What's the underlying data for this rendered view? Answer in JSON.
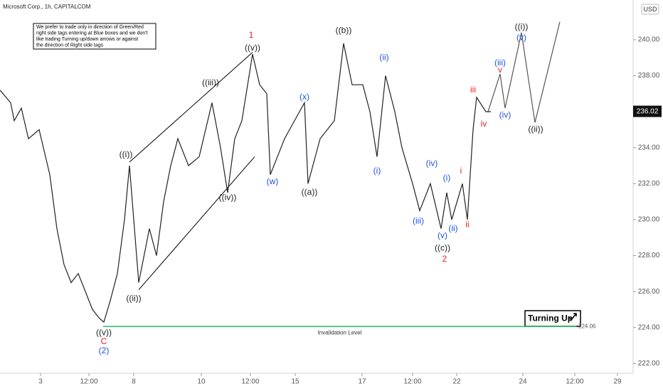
{
  "chart_data": {
    "type": "line",
    "title": "Microsoft Corp., 1h, CAPITALCOM",
    "currency": "USD",
    "note": [
      "We prefer to trade only in direction of Green/Red",
      "right side tags entering at Blue boxes and we don't",
      "like trading Turning up/down arrows or against",
      "the direction of Right side tags"
    ],
    "color": "#222222",
    "x": [
      0.0,
      1.5,
      2.0,
      3.0,
      4.0,
      5.5,
      7.0,
      8.0,
      9.0,
      10.0,
      11.0,
      12.0,
      13.0,
      14.0,
      14.6,
      15.5,
      16.5,
      17.5,
      18.2,
      19.5,
      21.0,
      22.0,
      23.0,
      24.0,
      25.0,
      26.5,
      28.0,
      29.8,
      31.0,
      32.0,
      33.0,
      34.0,
      35.5,
      36.5,
      37.5,
      38.0,
      40.0,
      42.8,
      43.3,
      45.0,
      47.0,
      48.3,
      49.5,
      51.0,
      52.0,
      53.0,
      54.2,
      55.5,
      56.5,
      58.0,
      59.0,
      60.5,
      62.0,
      62.8,
      63.5,
      65.0,
      65.7,
      66.5,
      67.0,
      68.3,
      69.0
    ],
    "values": [
      237.2,
      236.5,
      235.5,
      236.2,
      234.5,
      235.0,
      232.5,
      229.5,
      227.5,
      226.5,
      227.0,
      226.0,
      225.0,
      224.5,
      224.3,
      225.5,
      227.0,
      230.0,
      233.0,
      226.5,
      229.5,
      228.0,
      231.0,
      233.0,
      234.5,
      233.0,
      233.5,
      236.5,
      234.0,
      231.5,
      234.5,
      235.5,
      239.2,
      237.5,
      237.0,
      232.5,
      234.5,
      236.5,
      232.0,
      234.5,
      235.5,
      239.8,
      237.5,
      237.5,
      236.0,
      233.5,
      238.0,
      236.0,
      234.0,
      232.0,
      230.5,
      232.0,
      229.5,
      231.5,
      230.0,
      232.0,
      230.0,
      235.0,
      236.8,
      236.0,
      236.0
    ],
    "projection": {
      "color": "#555555",
      "x": [
        68.6,
        70.3,
        71.0,
        73.3,
        75.2,
        78.7
      ],
      "values": [
        236.0,
        238.1,
        236.2,
        240.4,
        235.4,
        241.0
      ]
    },
    "channel": [
      {
        "x": [
          18.2,
          35.5
        ],
        "values": [
          233.2,
          239.3
        ]
      },
      {
        "x": [
          19.5,
          35.8
        ],
        "values": [
          226.1,
          233.5
        ]
      }
    ],
    "invalidation": {
      "label": "Invalidation Level",
      "value": 224.06,
      "value_label": "224.06",
      "x": [
        14.5,
        81.0
      ],
      "color": "#22c55e"
    },
    "last_price": {
      "value": 236.02,
      "label": "236.02"
    },
    "badge": "Turning Up",
    "annotations": [
      {
        "text": "1",
        "x": 35.3,
        "y": 240.24,
        "color": "#e02020"
      },
      {
        "text": "((v))",
        "x": 35.5,
        "y": 239.53,
        "color": "#222222"
      },
      {
        "text": "((iii))",
        "x": 29.6,
        "y": 237.6,
        "color": "#222222"
      },
      {
        "text": "((i))",
        "x": 17.7,
        "y": 233.6,
        "color": "#222222"
      },
      {
        "text": "((ii))",
        "x": 18.8,
        "y": 225.6,
        "color": "#222222"
      },
      {
        "text": "((iv))",
        "x": 32.0,
        "y": 231.2,
        "color": "#222222"
      },
      {
        "text": "((v))",
        "x": 14.6,
        "y": 223.7,
        "color": "#222222"
      },
      {
        "text": "C",
        "x": 14.6,
        "y": 223.2,
        "color": "#e02020"
      },
      {
        "text": "(2)",
        "x": 14.6,
        "y": 222.7,
        "color": "#1e53e5"
      },
      {
        "text": "(w)",
        "x": 38.3,
        "y": 232.1,
        "color": "#1e53e5"
      },
      {
        "text": "(x)",
        "x": 42.8,
        "y": 236.8,
        "color": "#1e53e5"
      },
      {
        "text": "((a))",
        "x": 43.5,
        "y": 231.5,
        "color": "#222222"
      },
      {
        "text": "((b))",
        "x": 48.3,
        "y": 240.5,
        "color": "#222222"
      },
      {
        "text": "(ii)",
        "x": 54.0,
        "y": 239.0,
        "color": "#1e53e5"
      },
      {
        "text": "(i)",
        "x": 53.0,
        "y": 232.7,
        "color": "#1e53e5"
      },
      {
        "text": "(iii)",
        "x": 58.8,
        "y": 229.9,
        "color": "#1e53e5"
      },
      {
        "text": "(iv)",
        "x": 60.7,
        "y": 233.1,
        "color": "#1e53e5"
      },
      {
        "text": "(i)",
        "x": 62.8,
        "y": 232.3,
        "color": "#1e53e5"
      },
      {
        "text": "(v)",
        "x": 62.2,
        "y": 229.1,
        "color": "#1e53e5"
      },
      {
        "text": "(ii)",
        "x": 63.7,
        "y": 229.5,
        "color": "#1e53e5"
      },
      {
        "text": "((c))",
        "x": 62.2,
        "y": 228.4,
        "color": "#222222"
      },
      {
        "text": "2",
        "x": 62.5,
        "y": 227.8,
        "color": "#e02020"
      },
      {
        "text": "i",
        "x": 64.8,
        "y": 232.7,
        "color": "#e02020"
      },
      {
        "text": "ii",
        "x": 65.7,
        "y": 229.7,
        "color": "#e02020"
      },
      {
        "text": "iii",
        "x": 66.5,
        "y": 237.2,
        "color": "#e02020"
      },
      {
        "text": "iv",
        "x": 68.0,
        "y": 235.3,
        "color": "#e02020"
      },
      {
        "text": "(iii)",
        "x": 70.3,
        "y": 238.7,
        "color": "#1e53e5"
      },
      {
        "text": "v",
        "x": 70.3,
        "y": 238.3,
        "color": "#e02020"
      },
      {
        "text": "(iv)",
        "x": 71.0,
        "y": 235.8,
        "color": "#1e53e5"
      },
      {
        "text": "(v)",
        "x": 73.3,
        "y": 240.1,
        "color": "#1e53e5"
      },
      {
        "text": "((i))",
        "x": 73.3,
        "y": 240.7,
        "color": "#222222"
      },
      {
        "text": "((ii))",
        "x": 75.3,
        "y": 235.0,
        "color": "#222222"
      }
    ],
    "xlim": [
      0,
      89
    ],
    "ylim": [
      221.46,
      242.21
    ],
    "xticks": [
      {
        "value": 5.7,
        "label": "3"
      },
      {
        "value": 12.5,
        "label": "12:00"
      },
      {
        "value": 18.8,
        "label": "8"
      },
      {
        "value": 28.3,
        "label": "10"
      },
      {
        "value": 35.2,
        "label": "12:00"
      },
      {
        "value": 41.5,
        "label": "15"
      },
      {
        "value": 50.9,
        "label": "17"
      },
      {
        "value": 58.0,
        "label": "12:00"
      },
      {
        "value": 64.2,
        "label": "22"
      },
      {
        "value": 73.5,
        "label": "24"
      },
      {
        "value": 80.8,
        "label": "12:00"
      },
      {
        "value": 86.8,
        "label": "29"
      }
    ],
    "yticks": [
      {
        "value": 222,
        "label": "222.00"
      },
      {
        "value": 224,
        "label": "224.00"
      },
      {
        "value": 226,
        "label": "226.00"
      },
      {
        "value": 228,
        "label": "228.00"
      },
      {
        "value": 230,
        "label": "230.00"
      },
      {
        "value": 232,
        "label": "232.00"
      },
      {
        "value": 234,
        "label": "234.00"
      },
      {
        "value": 236,
        "label": "236.00"
      },
      {
        "value": 238,
        "label": "238.00"
      },
      {
        "value": 240,
        "label": "240.00"
      }
    ]
  }
}
